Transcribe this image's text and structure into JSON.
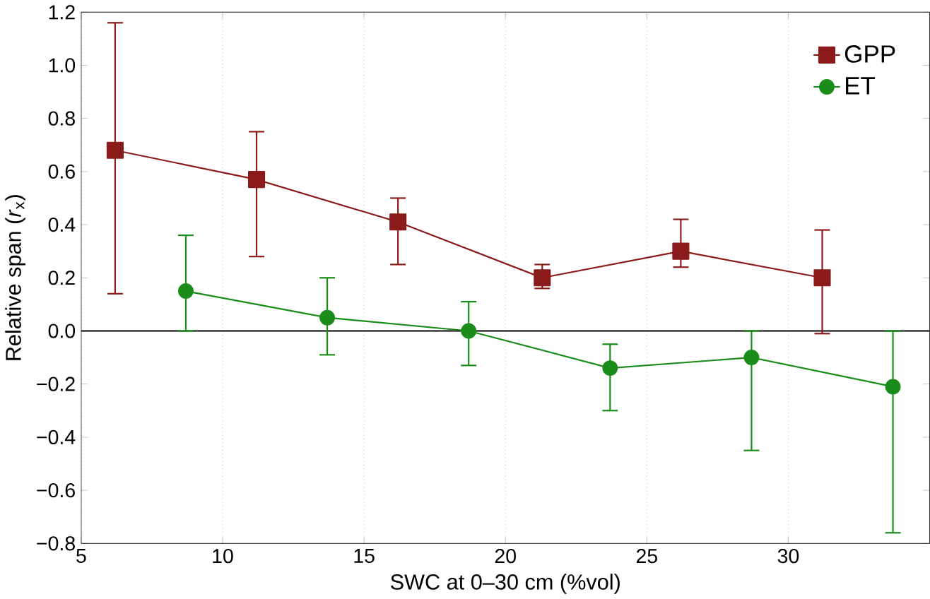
{
  "chart_data": {
    "type": "line",
    "xlabel": "SWC at 0–30 cm (%vol)",
    "ylabel": "Relative span (*r*$_{x}$)",
    "xlim": [
      5,
      35
    ],
    "ylim": [
      -0.8,
      1.2
    ],
    "xticks": [
      5,
      10,
      15,
      20,
      25,
      30
    ],
    "yticks": [
      {
        "value": -0.8,
        "label": "−0.8"
      },
      {
        "value": -0.6,
        "label": "−0.6"
      },
      {
        "value": -0.4,
        "label": "−0.4"
      },
      {
        "value": -0.2,
        "label": "−0.2"
      },
      {
        "value": 0,
        "label": "0.0"
      },
      {
        "value": 0.2,
        "label": "0.2"
      },
      {
        "value": 0.4,
        "label": "0.4"
      },
      {
        "value": 0.6,
        "label": "0.6"
      },
      {
        "value": 0.8,
        "label": "0.8"
      },
      {
        "value": 1.0,
        "label": "1.0"
      },
      {
        "value": 1.2,
        "label": "1.2"
      }
    ],
    "grid": "x",
    "legend": "top right",
    "line_style": "solid",
    "ref_lines": [
      {
        "axis": "y",
        "value": 0,
        "color": "#000000"
      }
    ],
    "series": [
      {
        "name": "GPP",
        "color": "#8b1a1a",
        "marker": "square",
        "x": [
          6.2,
          11.2,
          16.2,
          21.3,
          26.2,
          31.2
        ],
        "values": [
          0.68,
          0.57,
          0.41,
          0.2,
          0.3,
          0.2
        ],
        "errors": [
          [
            0.14,
            1.16
          ],
          [
            0.28,
            0.75
          ],
          [
            0.25,
            0.5
          ],
          [
            0.16,
            0.25
          ],
          [
            0.24,
            0.42
          ],
          [
            -0.01,
            0.38
          ]
        ]
      },
      {
        "name": "ET",
        "color": "#1a8c1a",
        "marker": "circle",
        "x": [
          8.7,
          13.7,
          18.7,
          23.7,
          28.7,
          33.7
        ],
        "values": [
          0.15,
          0.05,
          0.0,
          -0.14,
          -0.1,
          -0.21
        ],
        "errors": [
          [
            0.0,
            0.36
          ],
          [
            -0.09,
            0.2
          ],
          [
            -0.13,
            0.11
          ],
          [
            -0.3,
            -0.05
          ],
          [
            -0.45,
            0.0
          ],
          [
            -0.76,
            0.0
          ]
        ]
      }
    ]
  }
}
